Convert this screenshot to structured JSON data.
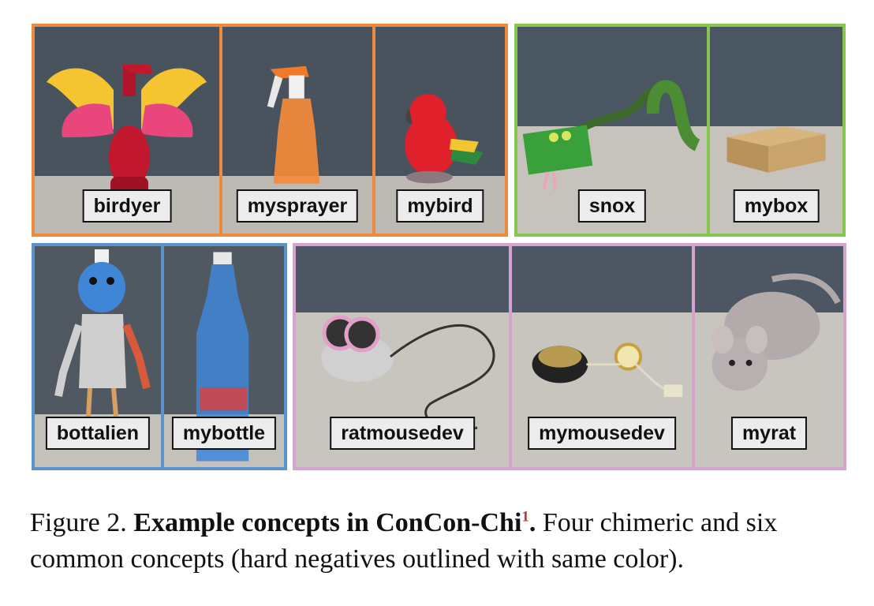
{
  "colors": {
    "orange": "#ee8a3c",
    "green": "#86c64b",
    "blue": "#5b93cf",
    "pink": "#d6a3d1"
  },
  "groups": [
    {
      "color": "orange",
      "concepts": [
        {
          "label": "birdyer",
          "icon": "winged-sprayer-icon"
        },
        {
          "label": "mysprayer",
          "icon": "spray-bottle-icon"
        },
        {
          "label": "mybird",
          "icon": "parrot-toy-icon"
        }
      ]
    },
    {
      "color": "green",
      "concepts": [
        {
          "label": "snox",
          "icon": "snake-box-icon"
        },
        {
          "label": "mybox",
          "icon": "cardboard-box-icon"
        }
      ]
    },
    {
      "color": "blue",
      "concepts": [
        {
          "label": "bottalien",
          "icon": "bottle-alien-icon"
        },
        {
          "label": "mybottle",
          "icon": "water-bottle-icon"
        }
      ]
    },
    {
      "color": "pink",
      "concepts": [
        {
          "label": "ratmousedev",
          "icon": "rat-mouse-device-icon"
        },
        {
          "label": "mymousedev",
          "icon": "computer-mouse-icon"
        },
        {
          "label": "myrat",
          "icon": "plush-rat-icon"
        }
      ]
    }
  ],
  "caption": {
    "prefix": "Figure 2.",
    "bold": "Example concepts in ConCon-Chi",
    "superscript": "1",
    "bold_end": ".",
    "rest": " Four chimeric and six common concepts (hard negatives outlined with same color)."
  }
}
